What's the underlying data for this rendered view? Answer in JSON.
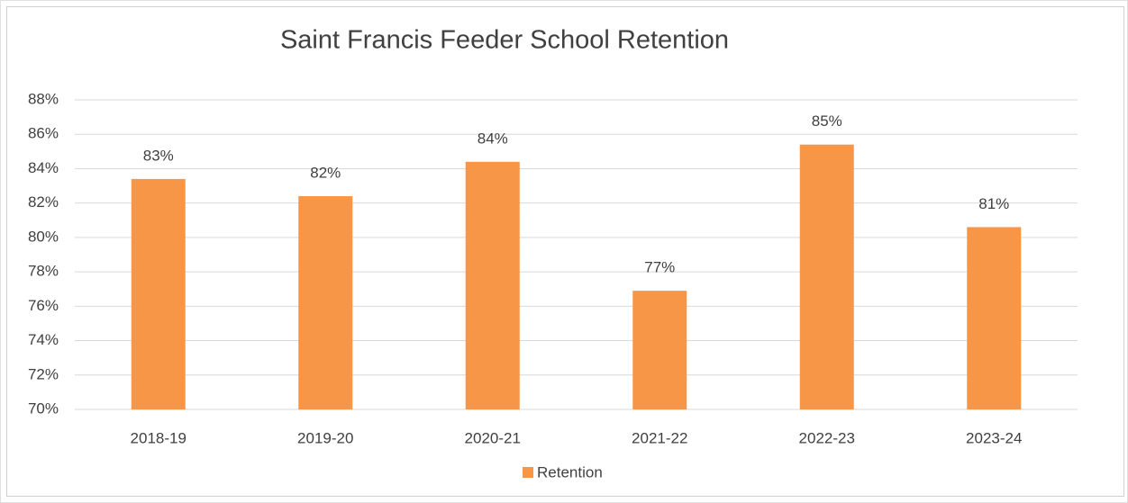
{
  "chart_data": {
    "type": "bar",
    "title": "Saint Francis Feeder School Retention",
    "categories": [
      "2018-19",
      "2019-20",
      "2020-21",
      "2021-22",
      "2022-23",
      "2023-24"
    ],
    "series": [
      {
        "name": "Retention",
        "color": "#f79646",
        "values": [
          83.4,
          82.4,
          84.4,
          76.9,
          85.4,
          80.6
        ],
        "value_labels": [
          "83%",
          "82%",
          "84%",
          "77%",
          "85%",
          "81%"
        ]
      }
    ],
    "ylim": [
      70,
      88
    ],
    "yticks": [
      {
        "value": 70,
        "label": "70%"
      },
      {
        "value": 72,
        "label": "72%"
      },
      {
        "value": 74,
        "label": "74%"
      },
      {
        "value": 76,
        "label": "76%"
      },
      {
        "value": 78,
        "label": "78%"
      },
      {
        "value": 80,
        "label": "80%"
      },
      {
        "value": 82,
        "label": "82%"
      },
      {
        "value": 84,
        "label": "84%"
      },
      {
        "value": 86,
        "label": "86%"
      },
      {
        "value": 88,
        "label": "88%"
      }
    ],
    "grid": true,
    "legend": "bottom"
  }
}
